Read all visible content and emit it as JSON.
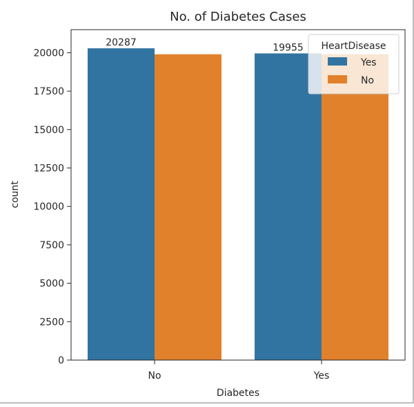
{
  "chart_data": {
    "type": "bar",
    "title": "No. of Diabetes Cases",
    "xlabel": "Diabetes",
    "ylabel": "count",
    "categories": [
      "No",
      "Yes"
    ],
    "series": [
      {
        "name": "Yes",
        "values": [
          20287,
          19955
        ],
        "color": "#3274a1"
      },
      {
        "name": "No",
        "values": [
          19900,
          19900
        ],
        "color": "#e1812c"
      }
    ],
    "data_labels": [
      "20287",
      "19955"
    ],
    "ylim": [
      0,
      21500
    ],
    "yticks": [
      0,
      2500,
      5000,
      7500,
      10000,
      12500,
      15000,
      17500,
      20000
    ],
    "legend": {
      "title": "HeartDisease",
      "placement": "top-right"
    },
    "grid": false
  }
}
